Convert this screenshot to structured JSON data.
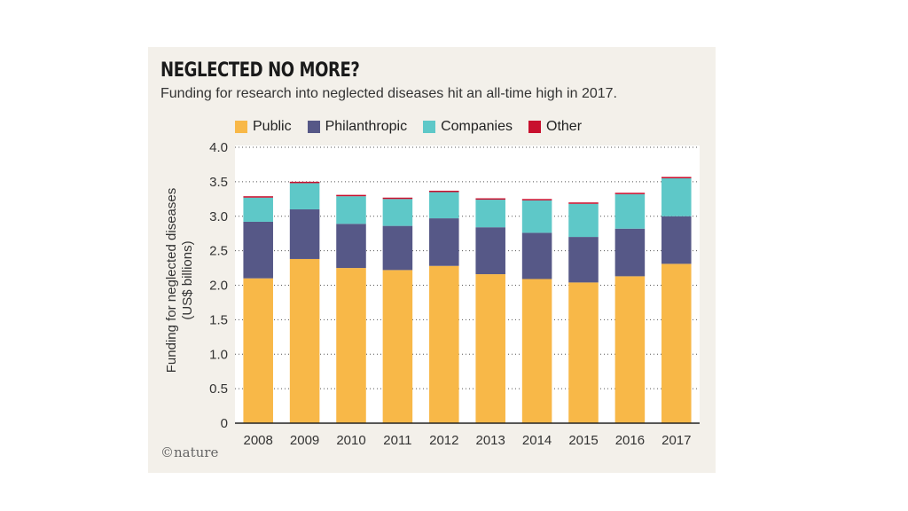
{
  "chart_data": {
    "type": "bar",
    "stacked": true,
    "title": "NEGLECTED NO MORE?",
    "subtitle": "Funding for research into neglected diseases hit an all-time high in 2017.",
    "ylabel_line1": "Funding for neglected diseases",
    "ylabel_line2": "(US$ billions)",
    "xlabel": "",
    "ylim": [
      0,
      4.0
    ],
    "yticks": [
      "0",
      "0.5",
      "1.0",
      "1.5",
      "2.0",
      "2.5",
      "3.0",
      "3.5",
      "4.0"
    ],
    "grid": "horizontal-dotted",
    "legend_position": "top",
    "categories": [
      "2008",
      "2009",
      "2010",
      "2011",
      "2012",
      "2013",
      "2014",
      "2015",
      "2016",
      "2017"
    ],
    "series": [
      {
        "name": "Public",
        "color": "#f8b848",
        "values": [
          2.1,
          2.38,
          2.25,
          2.22,
          2.28,
          2.16,
          2.09,
          2.04,
          2.13,
          2.31
        ]
      },
      {
        "name": "Philanthropic",
        "color": "#565887",
        "values": [
          0.82,
          0.72,
          0.64,
          0.64,
          0.69,
          0.68,
          0.67,
          0.66,
          0.69,
          0.69
        ]
      },
      {
        "name": "Companies",
        "color": "#5ec8c8",
        "values": [
          0.35,
          0.38,
          0.4,
          0.39,
          0.38,
          0.4,
          0.47,
          0.48,
          0.5,
          0.55
        ]
      },
      {
        "name": "Other",
        "color": "#c8102e",
        "values": [
          0.02,
          0.02,
          0.02,
          0.02,
          0.02,
          0.02,
          0.02,
          0.02,
          0.02,
          0.02
        ]
      }
    ]
  },
  "branding": {
    "logo_text": "©nature"
  }
}
